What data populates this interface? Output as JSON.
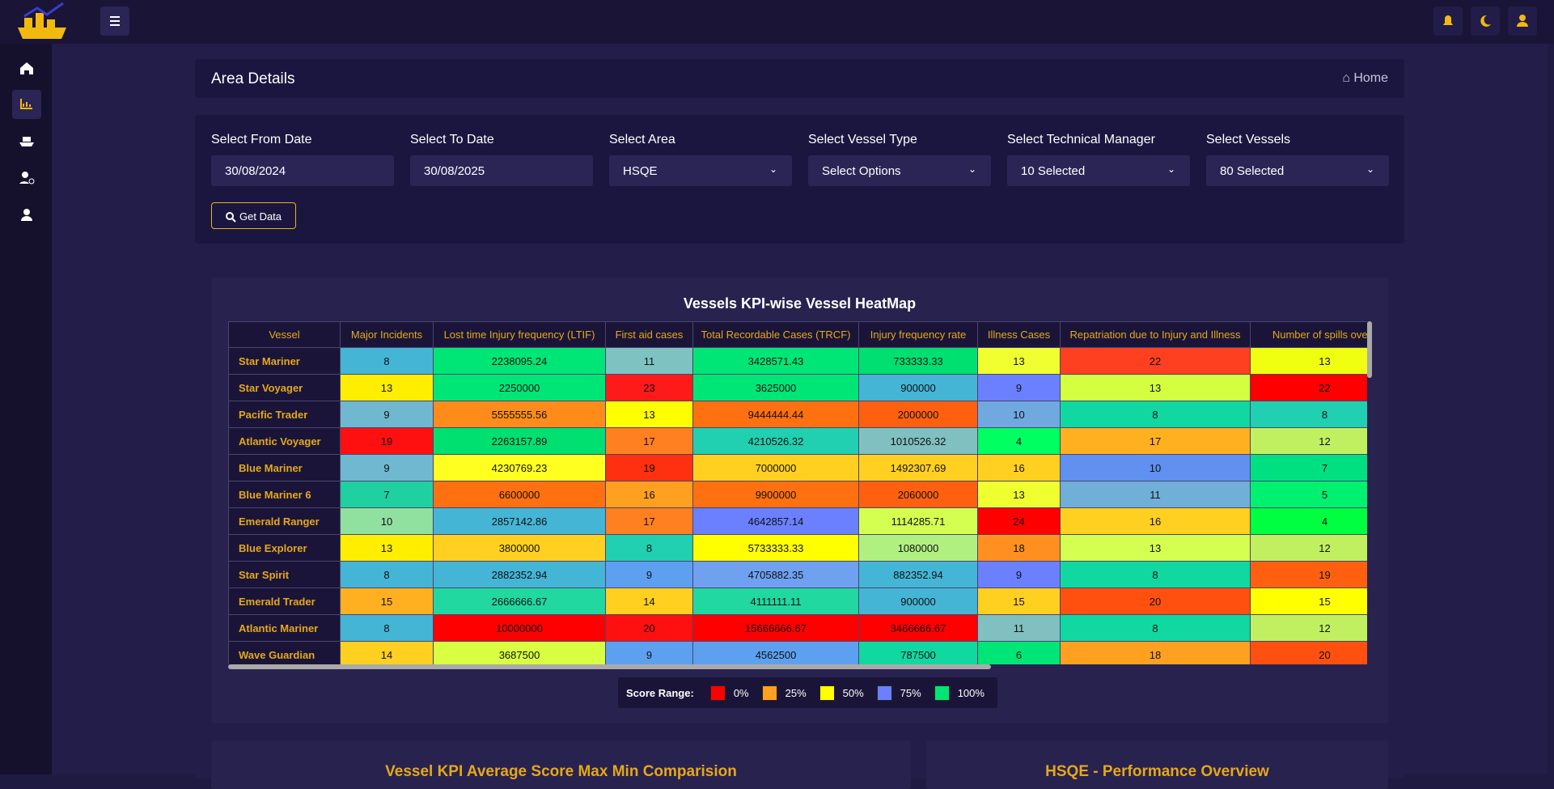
{
  "header": {
    "title": "Area Details",
    "breadcrumb": "Home"
  },
  "filters": [
    {
      "label": "Select From Date",
      "value": "30/08/2024",
      "dropdown": false
    },
    {
      "label": "Select To Date",
      "value": "30/08/2025",
      "dropdown": false
    },
    {
      "label": "Select Area",
      "value": "HSQE",
      "dropdown": true
    },
    {
      "label": "Select Vessel Type",
      "value": "Select Options",
      "dropdown": true
    },
    {
      "label": "Select Technical Manager",
      "value": "10 Selected",
      "dropdown": true
    },
    {
      "label": "Select Vessels",
      "value": "80 Selected",
      "dropdown": true
    }
  ],
  "button": "Get Data",
  "heatmap": {
    "title": "Vessels KPI-wise Vessel HeatMap",
    "columns": [
      "Vessel",
      "Major Incidents",
      "Lost time Injury frequency (LTIF)",
      "First aid cases",
      "Total Recordable Cases (TRCF)",
      "Injury frequency rate",
      "Illness Cases",
      "Repatriation due to Injury and Illness",
      "Number of spills overb"
    ],
    "rows": [
      {
        "vessel": "Star Mariner",
        "values": [
          8,
          2238095.24,
          11,
          3428571.43,
          733333.33,
          13,
          22,
          13
        ],
        "colors": [
          "#45b5d6",
          "#00e676",
          "#7ec2c2",
          "#00e676",
          "#00e070",
          "#f0ff30",
          "#ff4020",
          "#f0ff10"
        ]
      },
      {
        "vessel": "Star Voyager",
        "values": [
          13,
          2250000,
          23,
          3625000,
          900000,
          9,
          13,
          22
        ],
        "colors": [
          "#ffee00",
          "#00e676",
          "#ff1a1a",
          "#00e676",
          "#45b5d6",
          "#6a80ff",
          "#d4ff40",
          "#ff0000"
        ]
      },
      {
        "vessel": "Pacific Trader",
        "values": [
          9,
          5555555.56,
          13,
          9444444.44,
          2000000,
          10,
          8,
          8
        ],
        "colors": [
          "#70b8d0",
          "#ff8c1a",
          "#ffff00",
          "#ff7010",
          "#ff6010",
          "#70a8e0",
          "#10d8a0",
          "#20d0b0"
        ]
      },
      {
        "vessel": "Atlantic Voyager",
        "values": [
          19,
          2263157.89,
          17,
          4210526.32,
          1010526.32,
          4,
          17,
          12
        ],
        "colors": [
          "#ff1010",
          "#00e070",
          "#ff8020",
          "#20d0b0",
          "#80c0c0",
          "#00ff60",
          "#ffb020",
          "#c0f060"
        ]
      },
      {
        "vessel": "Blue Mariner",
        "values": [
          9,
          4230769.23,
          19,
          7000000,
          1492307.69,
          16,
          10,
          7
        ],
        "colors": [
          "#70b8d0",
          "#ffff20",
          "#ff3010",
          "#ffd020",
          "#ffd020",
          "#ffd020",
          "#6090f0",
          "#00e080"
        ]
      },
      {
        "vessel": "Blue Mariner 6",
        "values": [
          7,
          6600000,
          16,
          9900000,
          2060000,
          13,
          11,
          5
        ],
        "colors": [
          "#20d0a0",
          "#ff7010",
          "#ffa020",
          "#ff7010",
          "#ff6010",
          "#f0ff30",
          "#70b0d8",
          "#00f070"
        ]
      },
      {
        "vessel": "Emerald Ranger",
        "values": [
          10,
          2857142.86,
          17,
          4642857.14,
          1114285.71,
          24,
          16,
          4
        ],
        "colors": [
          "#90e0a0",
          "#45b5d6",
          "#ff8020",
          "#6a80ff",
          "#d4ff50",
          "#ff0000",
          "#ffd020",
          "#00ff40"
        ]
      },
      {
        "vessel": "Blue Explorer",
        "values": [
          13,
          3800000,
          8,
          5733333.33,
          1080000,
          18,
          13,
          12
        ],
        "colors": [
          "#ffee00",
          "#ffd020",
          "#20d0b0",
          "#ffff00",
          "#b0f080",
          "#ff9020",
          "#d4ff50",
          "#c0f060"
        ]
      },
      {
        "vessel": "Star Spirit",
        "values": [
          8,
          2882352.94,
          9,
          4705882.35,
          882352.94,
          9,
          8,
          19
        ],
        "colors": [
          "#45b5d6",
          "#45b5d6",
          "#5da0f0",
          "#70a0f0",
          "#45b5d6",
          "#6a80ff",
          "#10d8a0",
          "#ff6010"
        ]
      },
      {
        "vessel": "Emerald Trader",
        "values": [
          15,
          2666666.67,
          14,
          4111111.11,
          900000,
          15,
          20,
          15
        ],
        "colors": [
          "#ffb020",
          "#20d8a0",
          "#ffd020",
          "#20d8a0",
          "#45b5d6",
          "#ffd020",
          "#ff5010",
          "#ffff00"
        ]
      },
      {
        "vessel": "Atlantic Mariner",
        "values": [
          8,
          10000000,
          20,
          15666666.67,
          3466666.67,
          11,
          8,
          12
        ],
        "colors": [
          "#45b5d6",
          "#ff0000",
          "#ff1010",
          "#ff0000",
          "#ff0000",
          "#80c0c0",
          "#10d8a0",
          "#c0f060"
        ]
      },
      {
        "vessel": "Wave Guardian",
        "values": [
          14,
          3687500,
          9,
          4562500,
          787500,
          6,
          18,
          20
        ],
        "colors": [
          "#ffd020",
          "#d8ff40",
          "#5da0f0",
          "#5da0f0",
          "#10d8a0",
          "#00e676",
          "#ffa020",
          "#ff5010"
        ]
      }
    ],
    "legend": {
      "title": "Score Range:",
      "items": [
        {
          "label": "0%",
          "color": "#ff0000"
        },
        {
          "label": "25%",
          "color": "#ffa020"
        },
        {
          "label": "50%",
          "color": "#ffff00"
        },
        {
          "label": "75%",
          "color": "#6a80ff"
        },
        {
          "label": "100%",
          "color": "#00e676"
        }
      ]
    }
  },
  "bottom_cards": [
    "Vessel KPI Average Score Max Min Comparision",
    "HSQE - Performance Overview"
  ]
}
